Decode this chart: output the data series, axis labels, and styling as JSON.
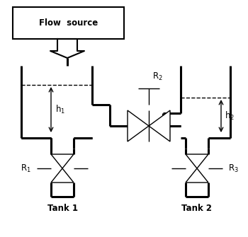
{
  "flow_source_text": "Flow  source",
  "tank1_label": "Tank 1",
  "tank2_label": "Tank 2",
  "R1_label": "R$_1$",
  "R2_label": "R$_2$",
  "R3_label": "R$_3$",
  "h1_label": "h$_1$",
  "h2_label": "h$_2$",
  "line_color": "#000000",
  "bg_color": "#ffffff",
  "lw_thick": 2.2,
  "lw_med": 1.5,
  "lw_thin": 1.0
}
